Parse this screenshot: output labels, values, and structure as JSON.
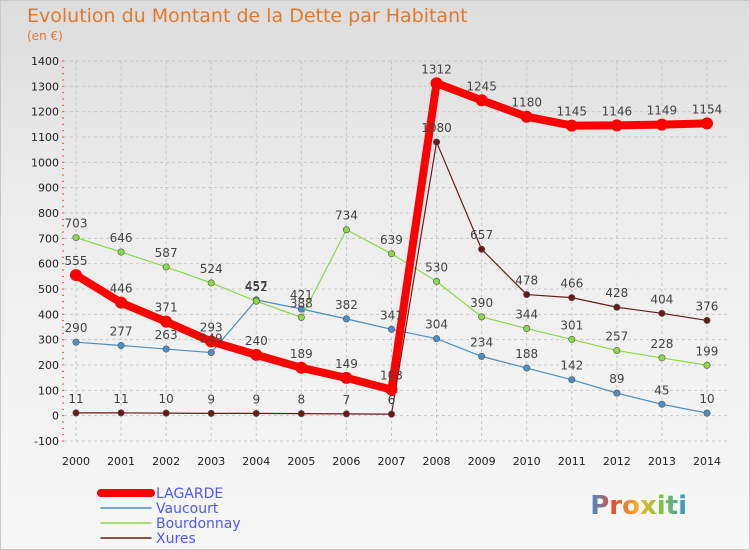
{
  "title": "Evolution du Montant de la Dette par Habitant",
  "subtitle": "(en €)",
  "logo": "Proxiti",
  "chart_data": {
    "type": "line",
    "x": [
      "2000",
      "2001",
      "2002",
      "2003",
      "2004",
      "2005",
      "2006",
      "2007",
      "2008",
      "2009",
      "2010",
      "2011",
      "2012",
      "2013",
      "2014"
    ],
    "ylim": [
      -100,
      1400
    ],
    "yticks": [
      -100,
      0,
      100,
      200,
      300,
      400,
      500,
      600,
      700,
      800,
      900,
      1000,
      1100,
      1200,
      1300,
      1400
    ],
    "grid": true,
    "legend_position": "bottom-left",
    "series": [
      {
        "name": "LAGARDE",
        "color": "#ff0000",
        "values": [
          555,
          446,
          371,
          293,
          240,
          189,
          149,
          103,
          1312,
          1245,
          1180,
          1145,
          1146,
          1149,
          1154
        ]
      },
      {
        "name": "Vaucourt",
        "color": "#4a90c8",
        "values": [
          290,
          277,
          263,
          249,
          457,
          421,
          382,
          341,
          304,
          234,
          188,
          142,
          89,
          45,
          10
        ]
      },
      {
        "name": "Bourdonnay",
        "color": "#8cd84a",
        "values": [
          703,
          646,
          587,
          524,
          452,
          388,
          734,
          639,
          530,
          390,
          344,
          301,
          257,
          228,
          199
        ]
      },
      {
        "name": "Xures",
        "color": "#6b1a1a",
        "values": [
          11,
          11,
          10,
          9,
          9,
          8,
          7,
          6,
          1080,
          657,
          478,
          466,
          428,
          404,
          376
        ]
      }
    ],
    "data_labels": [
      [
        "555",
        "446",
        "371",
        "293",
        "240",
        "189",
        "149",
        "103",
        "1312",
        "1245",
        "1180",
        "1145",
        "1146",
        "1149",
        "1154"
      ],
      [
        "290",
        "277",
        "263",
        "249",
        "457",
        "421",
        "382",
        "341",
        "304",
        "234",
        "188",
        "142",
        "89",
        "45",
        "10"
      ],
      [
        "703",
        "646",
        "587",
        "524",
        "452",
        "388",
        "734",
        "639",
        "530",
        "390",
        "344",
        "301",
        "257",
        "228",
        "199"
      ],
      [
        "11",
        "11",
        "10",
        "9",
        "9",
        "8",
        "7",
        "6",
        "1080",
        "657",
        "478",
        "466",
        "428",
        "404",
        "376"
      ]
    ]
  }
}
